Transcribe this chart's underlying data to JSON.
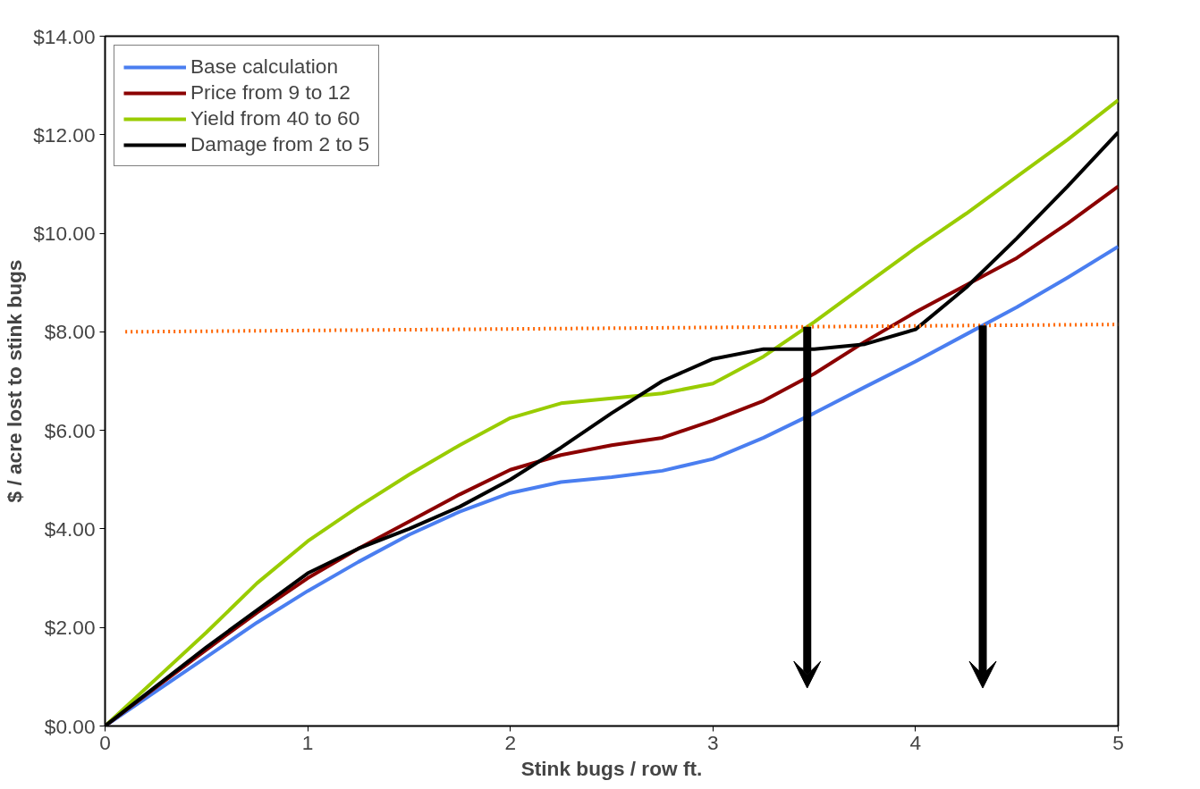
{
  "chart_data": {
    "type": "line",
    "xlabel": "Stink bugs / row ft.",
    "ylabel": "$ / acre lost to stink bugs",
    "x": [
      0,
      0.25,
      0.5,
      0.75,
      1,
      1.25,
      1.5,
      1.75,
      2,
      2.25,
      2.5,
      2.75,
      3,
      3.25,
      3.5,
      3.75,
      4,
      4.25,
      4.5,
      4.75,
      5
    ],
    "series": [
      {
        "name": "Base calculation",
        "color": "#4a7ef0",
        "values": [
          0,
          0.7,
          1.4,
          2.1,
          2.74,
          3.33,
          3.88,
          4.35,
          4.73,
          4.95,
          5.05,
          5.18,
          5.42,
          5.85,
          6.35,
          6.88,
          7.4,
          7.95,
          8.5,
          9.1,
          9.73
        ]
      },
      {
        "name": "Price from 9 to 12",
        "color": "#8b0000",
        "values": [
          0,
          0.78,
          1.55,
          2.3,
          3.0,
          3.6,
          4.15,
          4.7,
          5.2,
          5.5,
          5.7,
          5.85,
          6.2,
          6.6,
          7.15,
          7.8,
          8.4,
          8.95,
          9.5,
          10.2,
          10.95
        ]
      },
      {
        "name": "Yield from 40 to 60",
        "color": "#99cc00",
        "values": [
          0,
          0.95,
          1.9,
          2.9,
          3.75,
          4.45,
          5.1,
          5.7,
          6.25,
          6.55,
          6.65,
          6.75,
          6.95,
          7.5,
          8.2,
          8.95,
          9.7,
          10.4,
          11.15,
          11.9,
          12.7
        ]
      },
      {
        "name": "Damage from 2 to 5",
        "color": "#000000",
        "values": [
          0,
          0.8,
          1.6,
          2.35,
          3.1,
          3.6,
          4.0,
          4.45,
          5.0,
          5.65,
          6.35,
          7.0,
          7.45,
          7.65,
          7.65,
          7.75,
          8.05,
          8.9,
          9.9,
          10.95,
          12.05
        ]
      },
      {
        "color": "#ff6600",
        "x": [
          0.1,
          5
        ],
        "values": [
          8.0,
          8.15
        ],
        "line_style": "dotted"
      }
    ],
    "xlim": [
      0,
      5
    ],
    "xticks": [
      0,
      1,
      2,
      3,
      4,
      5
    ],
    "ylim": [
      0,
      14
    ],
    "yticks": [
      {
        "value": 0,
        "label": "$0.00"
      },
      {
        "value": 2,
        "label": "$2.00"
      },
      {
        "value": 4,
        "label": "$4.00"
      },
      {
        "value": 6,
        "label": "$6.00"
      },
      {
        "value": 8,
        "label": "$8.00"
      },
      {
        "value": 10,
        "label": "$10.00"
      },
      {
        "value": 12,
        "label": "$12.00"
      },
      {
        "value": 14,
        "label": "$14.00"
      }
    ],
    "grid": false,
    "legend": "top left",
    "line_style": "solid",
    "marker": "none"
  }
}
